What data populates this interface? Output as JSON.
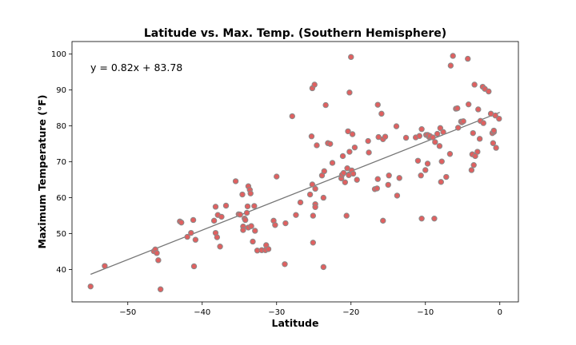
{
  "chart_data": {
    "type": "scatter",
    "title": "Latitude vs. Max. Temp. (Southern Hemisphere)",
    "xlabel": "Latitude",
    "ylabel": "Maximum Temperature (°F)",
    "xlim": [
      -57.5,
      2.5
    ],
    "ylim": [
      31,
      103.5
    ],
    "xticks": [
      -50,
      -40,
      -30,
      -20,
      -10,
      0
    ],
    "yticks": [
      40,
      50,
      60,
      70,
      80,
      90,
      100
    ],
    "annotation": "y = 0.82x + 83.78",
    "regression": {
      "slope": 0.82,
      "intercept": 83.78,
      "x_range": [
        -55.0,
        0
      ]
    },
    "marker_color": "#e06060",
    "marker_edge_color": "#8a8a8a",
    "line_color": "#757575",
    "points": [
      [
        -55.0,
        35.3
      ],
      [
        -53.1,
        41.0
      ],
      [
        -46.5,
        45.1
      ],
      [
        -46.3,
        45.6
      ],
      [
        -46.1,
        44.6
      ],
      [
        -45.9,
        42.6
      ],
      [
        -45.6,
        34.5
      ],
      [
        -43.0,
        53.4
      ],
      [
        -42.8,
        53.1
      ],
      [
        -42.0,
        49.1
      ],
      [
        -41.5,
        50.2
      ],
      [
        -41.2,
        53.8
      ],
      [
        -41.1,
        40.9
      ],
      [
        -40.9,
        48.3
      ],
      [
        -38.4,
        53.6
      ],
      [
        -38.2,
        57.5
      ],
      [
        -38.2,
        50.2
      ],
      [
        -38.0,
        49.0
      ],
      [
        -37.9,
        55.2
      ],
      [
        -37.6,
        46.4
      ],
      [
        -37.4,
        54.7
      ],
      [
        -36.8,
        57.8
      ],
      [
        -35.5,
        64.6
      ],
      [
        -35.1,
        55.4
      ],
      [
        -34.9,
        55.3
      ],
      [
        -34.6,
        60.9
      ],
      [
        -34.5,
        52.0
      ],
      [
        -34.5,
        51.0
      ],
      [
        -34.3,
        54.2
      ],
      [
        -34.2,
        53.8
      ],
      [
        -34.0,
        55.8
      ],
      [
        -33.9,
        57.6
      ],
      [
        -33.8,
        63.2
      ],
      [
        -33.8,
        51.7
      ],
      [
        -33.6,
        62.2
      ],
      [
        -33.5,
        61.2
      ],
      [
        -33.4,
        52.1
      ],
      [
        -33.2,
        47.8
      ],
      [
        -33.0,
        57.7
      ],
      [
        -32.9,
        50.8
      ],
      [
        -32.6,
        45.3
      ],
      [
        -32.0,
        45.4
      ],
      [
        -31.5,
        45.4
      ],
      [
        -31.4,
        46.8
      ],
      [
        -31.1,
        45.7
      ],
      [
        -30.4,
        53.6
      ],
      [
        -30.2,
        52.4
      ],
      [
        -30.0,
        65.9
      ],
      [
        -28.9,
        41.5
      ],
      [
        -28.8,
        52.9
      ],
      [
        -27.9,
        82.7
      ],
      [
        -27.4,
        55.2
      ],
      [
        -26.8,
        58.7
      ],
      [
        -25.5,
        60.9
      ],
      [
        -25.3,
        77.1
      ],
      [
        -25.2,
        90.5
      ],
      [
        -25.2,
        63.7
      ],
      [
        -25.1,
        55.0
      ],
      [
        -25.1,
        47.5
      ],
      [
        -24.9,
        91.5
      ],
      [
        -24.8,
        58.2
      ],
      [
        -24.8,
        57.4
      ],
      [
        -24.8,
        62.5
      ],
      [
        -24.6,
        74.6
      ],
      [
        -23.9,
        66.2
      ],
      [
        -23.7,
        60.0
      ],
      [
        -23.7,
        40.7
      ],
      [
        -23.6,
        67.4
      ],
      [
        -23.4,
        85.8
      ],
      [
        -23.1,
        75.2
      ],
      [
        -22.8,
        75.0
      ],
      [
        -22.5,
        69.7
      ],
      [
        -21.3,
        65.4
      ],
      [
        -21.2,
        66.4
      ],
      [
        -21.1,
        71.6
      ],
      [
        -21.0,
        66.9
      ],
      [
        -20.8,
        64.3
      ],
      [
        -20.6,
        55.0
      ],
      [
        -20.5,
        68.2
      ],
      [
        -20.4,
        78.5
      ],
      [
        -20.3,
        66.3
      ],
      [
        -20.2,
        72.8
      ],
      [
        -20.2,
        89.3
      ],
      [
        -20.0,
        99.2
      ],
      [
        -19.9,
        67.6
      ],
      [
        -19.8,
        77.7
      ],
      [
        -19.7,
        66.7
      ],
      [
        -19.5,
        74.0
      ],
      [
        -19.2,
        65.0
      ],
      [
        -17.7,
        75.8
      ],
      [
        -17.6,
        72.6
      ],
      [
        -16.8,
        62.4
      ],
      [
        -16.5,
        62.6
      ],
      [
        -16.4,
        65.2
      ],
      [
        -16.4,
        85.9
      ],
      [
        -16.3,
        76.9
      ],
      [
        -15.9,
        83.4
      ],
      [
        -15.7,
        76.3
      ],
      [
        -15.7,
        53.6
      ],
      [
        -15.4,
        77.0
      ],
      [
        -15.0,
        63.6
      ],
      [
        -14.9,
        66.2
      ],
      [
        -13.9,
        79.9
      ],
      [
        -13.8,
        60.6
      ],
      [
        -13.5,
        65.5
      ],
      [
        -12.6,
        76.7
      ],
      [
        -11.3,
        76.8
      ],
      [
        -11.0,
        70.3
      ],
      [
        -10.8,
        77.2
      ],
      [
        -10.6,
        66.2
      ],
      [
        -10.5,
        54.2
      ],
      [
        -10.5,
        79.1
      ],
      [
        -10.0,
        67.7
      ],
      [
        -9.9,
        77.5
      ],
      [
        -9.7,
        69.5
      ],
      [
        -9.7,
        77.5
      ],
      [
        -9.5,
        76.9
      ],
      [
        -9.4,
        77.2
      ],
      [
        -9.0,
        76.8
      ],
      [
        -8.8,
        54.2
      ],
      [
        -8.7,
        75.5
      ],
      [
        -8.4,
        77.8
      ],
      [
        -8.1,
        74.4
      ],
      [
        -8.0,
        79.4
      ],
      [
        -7.9,
        64.4
      ],
      [
        -7.8,
        70.1
      ],
      [
        -7.6,
        78.3
      ],
      [
        -7.2,
        65.8
      ],
      [
        -6.7,
        72.2
      ],
      [
        -6.6,
        96.8
      ],
      [
        -6.3,
        99.5
      ],
      [
        -5.9,
        84.8
      ],
      [
        -5.7,
        84.9
      ],
      [
        -5.6,
        79.5
      ],
      [
        -5.2,
        81.2
      ],
      [
        -5.1,
        81.0
      ],
      [
        -4.9,
        81.3
      ],
      [
        -4.3,
        98.7
      ],
      [
        -4.2,
        86.0
      ],
      [
        -3.8,
        67.7
      ],
      [
        -3.7,
        72.1
      ],
      [
        -3.6,
        78.0
      ],
      [
        -3.5,
        69.1
      ],
      [
        -3.4,
        91.5
      ],
      [
        -3.3,
        71.6
      ],
      [
        -3.0,
        72.8
      ],
      [
        -2.9,
        84.6
      ],
      [
        -2.7,
        76.4
      ],
      [
        -2.6,
        81.4
      ],
      [
        -2.3,
        90.9
      ],
      [
        -2.2,
        80.8
      ],
      [
        -2.0,
        90.3
      ],
      [
        -1.5,
        89.6
      ],
      [
        -1.2,
        83.4
      ],
      [
        -1.0,
        78.0
      ],
      [
        -0.9,
        75.2
      ],
      [
        -0.8,
        78.3
      ],
      [
        -0.8,
        78.7
      ],
      [
        -0.6,
        82.9
      ],
      [
        -0.5,
        73.9
      ],
      [
        -0.1,
        82.0
      ]
    ]
  }
}
